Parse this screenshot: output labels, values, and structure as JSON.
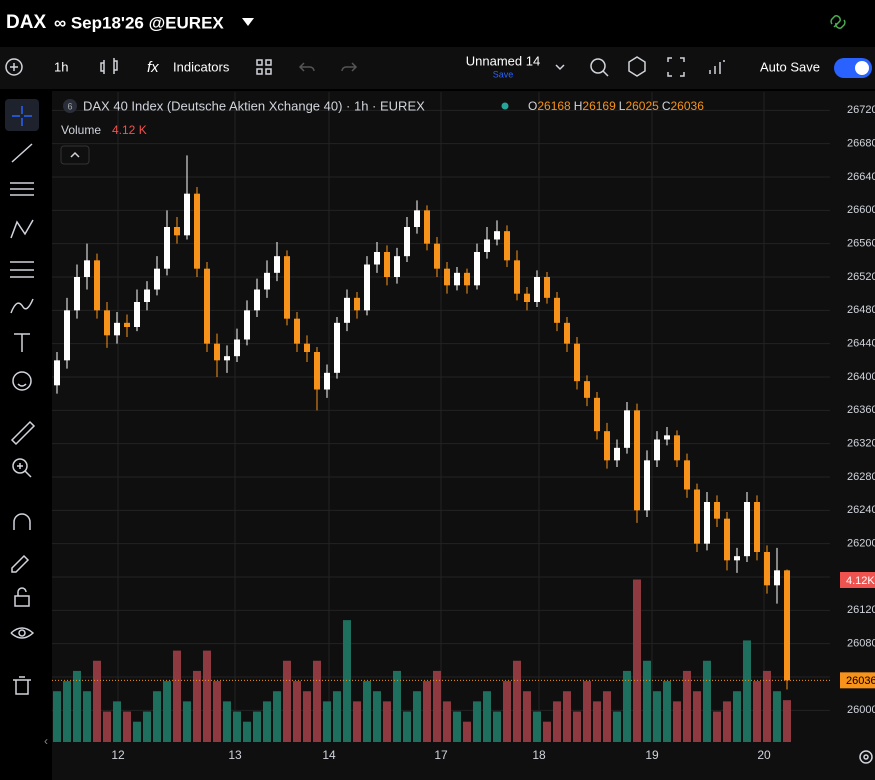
{
  "ui": {
    "symbol": "DAX",
    "contract": "∞ Sep18'26 @EUREX",
    "interval": "1h",
    "indicators": "Indicators",
    "layout_name": "Unnamed 14",
    "save": "Save",
    "auto_save": "Auto Save",
    "legend_badge": "6",
    "legend_title": "DAX 40 Index (Deutsche Aktien Xchange 40) · 1h · EUREX",
    "o": "O",
    "h": "H",
    "l": "L",
    "c": "C",
    "volume": "Volume",
    "volume_header": "4.12 K",
    "volume_badge": "4.12K"
  },
  "chart_data": {
    "type": "candlestick",
    "fields": [
      "open",
      "high",
      "low",
      "close"
    ],
    "ohlc": [
      [
        26390,
        26430,
        26380,
        26420
      ],
      [
        26420,
        26495,
        26410,
        26480
      ],
      [
        26480,
        26535,
        26470,
        26520
      ],
      [
        26520,
        26560,
        26505,
        26540
      ],
      [
        26540,
        26548,
        26470,
        26480
      ],
      [
        26480,
        26490,
        26435,
        26450
      ],
      [
        26450,
        26478,
        26440,
        26465
      ],
      [
        26465,
        26475,
        26448,
        26460
      ],
      [
        26460,
        26505,
        26455,
        26490
      ],
      [
        26490,
        26515,
        26480,
        26505
      ],
      [
        26505,
        26545,
        26498,
        26530
      ],
      [
        26530,
        26600,
        26522,
        26580
      ],
      [
        26580,
        26592,
        26560,
        26570
      ],
      [
        26570,
        26666,
        26565,
        26620
      ],
      [
        26620,
        26628,
        26520,
        26530
      ],
      [
        26530,
        26538,
        26430,
        26440
      ],
      [
        26440,
        26452,
        26400,
        26420
      ],
      [
        26420,
        26438,
        26405,
        26425
      ],
      [
        26425,
        26458,
        26418,
        26445
      ],
      [
        26445,
        26492,
        26438,
        26480
      ],
      [
        26480,
        26518,
        26472,
        26505
      ],
      [
        26505,
        26540,
        26495,
        26525
      ],
      [
        26525,
        26562,
        26515,
        26545
      ],
      [
        26545,
        26552,
        26462,
        26470
      ],
      [
        26470,
        26478,
        26430,
        26440
      ],
      [
        26440,
        26450,
        26418,
        26430
      ],
      [
        26430,
        26436,
        26360,
        26385
      ],
      [
        26385,
        26415,
        26375,
        26405
      ],
      [
        26405,
        26472,
        26398,
        26465
      ],
      [
        26465,
        26505,
        26455,
        26495
      ],
      [
        26495,
        26502,
        26470,
        26480
      ],
      [
        26480,
        26545,
        26474,
        26535
      ],
      [
        26535,
        26562,
        26525,
        26550
      ],
      [
        26550,
        26558,
        26510,
        26520
      ],
      [
        26520,
        26555,
        26512,
        26545
      ],
      [
        26545,
        26592,
        26538,
        26580
      ],
      [
        26580,
        26612,
        26572,
        26600
      ],
      [
        26600,
        26606,
        26552,
        26560
      ],
      [
        26560,
        26568,
        26520,
        26530
      ],
      [
        26530,
        26538,
        26500,
        26510
      ],
      [
        26510,
        26532,
        26504,
        26525
      ],
      [
        26525,
        26530,
        26500,
        26510
      ],
      [
        26510,
        26560,
        26505,
        26550
      ],
      [
        26550,
        26580,
        26542,
        26565
      ],
      [
        26565,
        26588,
        26558,
        26575
      ],
      [
        26575,
        26582,
        26532,
        26540
      ],
      [
        26540,
        26552,
        26492,
        26500
      ],
      [
        26500,
        26508,
        26480,
        26490
      ],
      [
        26490,
        26528,
        26484,
        26520
      ],
      [
        26520,
        26526,
        26488,
        26495
      ],
      [
        26495,
        26502,
        26455,
        26465
      ],
      [
        26465,
        26472,
        26430,
        26440
      ],
      [
        26440,
        26448,
        26385,
        26395
      ],
      [
        26395,
        26402,
        26365,
        26375
      ],
      [
        26375,
        26382,
        26325,
        26335
      ],
      [
        26335,
        26345,
        26290,
        26300
      ],
      [
        26300,
        26325,
        26292,
        26315
      ],
      [
        26315,
        26370,
        26308,
        26360
      ],
      [
        26360,
        26368,
        26225,
        26240
      ],
      [
        26240,
        26312,
        26232,
        26300
      ],
      [
        26300,
        26335,
        26292,
        26325
      ],
      [
        26325,
        26340,
        26318,
        26330
      ],
      [
        26330,
        26336,
        26292,
        26300
      ],
      [
        26300,
        26308,
        26255,
        26265
      ],
      [
        26265,
        26272,
        26190,
        26200
      ],
      [
        26200,
        26262,
        26192,
        26250
      ],
      [
        26250,
        26258,
        26220,
        26230
      ],
      [
        26230,
        26238,
        26168,
        26180
      ],
      [
        26180,
        26195,
        26165,
        26185
      ],
      [
        26185,
        26262,
        26178,
        26250
      ],
      [
        26250,
        26258,
        26180,
        26190
      ],
      [
        26190,
        26198,
        26140,
        26150
      ],
      [
        26150,
        26195,
        26128,
        26168
      ],
      [
        26168,
        26169,
        26025,
        26036
      ]
    ],
    "volume": [
      5,
      6,
      7,
      5,
      8,
      3,
      4,
      3,
      2,
      3,
      5,
      6,
      9,
      4,
      7,
      9,
      6,
      4,
      3,
      2,
      3,
      4,
      5,
      8,
      6,
      5,
      8,
      4,
      5,
      12,
      4,
      6,
      5,
      4,
      7,
      3,
      5,
      6,
      7,
      4,
      3,
      2,
      4,
      5,
      3,
      6,
      8,
      5,
      3,
      2,
      4,
      5,
      3,
      6,
      4,
      5,
      3,
      7,
      16,
      8,
      5,
      6,
      4,
      7,
      5,
      8,
      3,
      4,
      5,
      10,
      6,
      7,
      5,
      4.12
    ],
    "up_color": "#ffffff",
    "down_color": "#f7931a",
    "volume_up_color": "#1f6f5f",
    "volume_down_color": "#8e3a40",
    "xlim": [
      -0.5,
      77.3
    ],
    "xticks": [
      {
        "value": 6.1,
        "label": "12"
      },
      {
        "value": 17.8,
        "label": "13"
      },
      {
        "value": 27.2,
        "label": "14"
      },
      {
        "value": 38.4,
        "label": "17"
      },
      {
        "value": 48.2,
        "label": "18"
      },
      {
        "value": 59.5,
        "label": "19"
      },
      {
        "value": 70.7,
        "label": "20"
      }
    ],
    "ylim": [
      25962,
      26742
    ],
    "yticks": [
      26000,
      26040,
      26080,
      26120,
      26160,
      26200,
      26240,
      26280,
      26320,
      26360,
      26400,
      26440,
      26480,
      26520,
      26560,
      26600,
      26640,
      26680,
      26720
    ],
    "y2lim": [
      0,
      64
    ],
    "grid": true
  }
}
